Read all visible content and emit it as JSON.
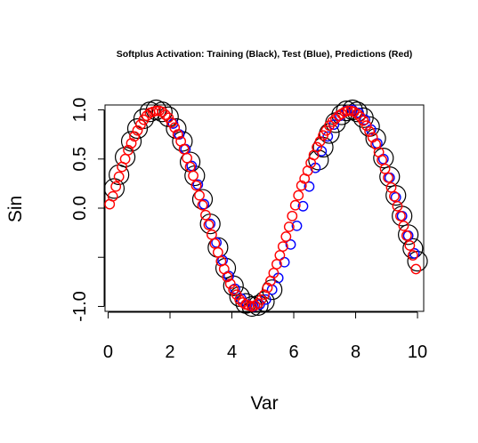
{
  "chart_data": {
    "type": "scatter",
    "title": "Softplus Activation: Training (Black), Test (Blue), Predictions (Red)",
    "xlabel": "Var",
    "ylabel": "Sin",
    "xlim": [
      -0.1,
      10.2
    ],
    "ylim": [
      -1.05,
      1.05
    ],
    "x_ticks": [
      0,
      2,
      4,
      6,
      8,
      10
    ],
    "x_tick_labels": [
      "0",
      "2",
      "4",
      "6",
      "8",
      "10"
    ],
    "y_ticks": [
      -1.0,
      -0.5,
      0.0,
      0.5,
      1.0
    ],
    "y_tick_labels": [
      "-1.0",
      "",
      "0.0",
      "0.5",
      "1.0"
    ],
    "grid": false,
    "legend": "none",
    "series": [
      {
        "color": "#000000",
        "marker": "open-circle-large",
        "x": [
          0.2,
          0.35,
          0.55,
          0.75,
          0.95,
          1.15,
          1.35,
          1.55,
          1.75,
          1.95,
          2.2,
          2.4,
          2.65,
          2.8,
          3.05,
          3.3,
          3.55,
          3.8,
          4.05,
          4.25,
          4.45,
          4.65,
          4.85,
          5.05,
          5.3,
          6.8,
          6.95,
          7.15,
          7.35,
          7.55,
          7.7,
          7.9,
          8.05,
          8.25,
          8.45,
          8.65,
          8.9,
          9.1,
          9.3,
          9.5,
          9.7,
          9.85,
          10.0
        ],
        "y": [
          0.2,
          0.34,
          0.52,
          0.68,
          0.81,
          0.91,
          0.98,
          1.0,
          0.98,
          0.93,
          0.81,
          0.68,
          0.47,
          0.33,
          0.09,
          -0.16,
          -0.4,
          -0.61,
          -0.79,
          -0.9,
          -0.97,
          -1.0,
          -0.99,
          -0.95,
          -0.83,
          0.49,
          0.62,
          0.76,
          0.87,
          0.95,
          0.99,
          1.0,
          0.98,
          0.92,
          0.83,
          0.71,
          0.51,
          0.32,
          0.13,
          -0.08,
          -0.27,
          -0.41,
          -0.54
        ]
      },
      {
        "color": "#0000ff",
        "marker": "open-circle",
        "x": [
          2.1,
          2.3,
          2.5,
          2.7,
          2.9,
          3.1,
          3.3,
          3.5,
          3.7,
          3.9,
          4.1,
          4.3,
          4.5,
          4.7,
          4.9,
          5.1,
          5.3,
          5.5,
          5.7,
          5.9,
          6.1,
          6.3,
          6.5,
          6.7,
          6.9,
          7.1,
          7.3,
          7.5,
          7.7,
          7.9,
          8.1,
          8.3,
          8.5,
          8.7,
          8.9,
          9.1,
          9.3,
          9.5,
          9.7,
          9.9
        ],
        "y": [
          0.86,
          0.75,
          0.6,
          0.43,
          0.24,
          0.04,
          -0.16,
          -0.35,
          -0.53,
          -0.69,
          -0.82,
          -0.92,
          -0.98,
          -1.0,
          -0.98,
          -0.93,
          -0.83,
          -0.71,
          -0.55,
          -0.37,
          -0.18,
          0.02,
          0.22,
          0.41,
          0.58,
          0.73,
          0.85,
          0.94,
          0.99,
          1.0,
          0.97,
          0.9,
          0.8,
          0.66,
          0.5,
          0.31,
          0.11,
          -0.08,
          -0.28,
          -0.46
        ]
      },
      {
        "color": "#ff0000",
        "marker": "open-circle",
        "x": [
          0.05,
          0.15,
          0.25,
          0.35,
          0.45,
          0.55,
          0.65,
          0.75,
          0.85,
          0.95,
          1.05,
          1.15,
          1.25,
          1.35,
          1.45,
          1.55,
          1.65,
          1.75,
          1.85,
          1.95,
          2.05,
          2.15,
          2.25,
          2.35,
          2.45,
          2.55,
          2.65,
          2.75,
          2.85,
          2.95,
          3.05,
          3.15,
          3.25,
          3.35,
          3.45,
          3.55,
          3.65,
          3.75,
          3.85,
          3.95,
          4.05,
          4.15,
          4.25,
          4.35,
          4.45,
          4.55,
          4.65,
          4.75,
          4.85,
          4.95,
          5.05,
          5.15,
          5.25,
          5.35,
          5.45,
          5.55,
          5.65,
          5.75,
          5.85,
          5.95,
          6.05,
          6.15,
          6.25,
          6.35,
          6.45,
          6.55,
          6.65,
          6.75,
          6.85,
          6.95,
          7.05,
          7.15,
          7.25,
          7.35,
          7.45,
          7.55,
          7.65,
          7.75,
          7.85,
          7.95,
          8.05,
          8.15,
          8.25,
          8.35,
          8.45,
          8.55,
          8.65,
          8.75,
          8.85,
          8.95,
          9.05,
          9.15,
          9.25,
          9.35,
          9.45,
          9.55,
          9.65,
          9.75,
          9.85,
          9.95
        ],
        "y": [
          0.04,
          0.12,
          0.22,
          0.32,
          0.42,
          0.5,
          0.59,
          0.66,
          0.73,
          0.79,
          0.85,
          0.9,
          0.94,
          0.97,
          0.98,
          0.99,
          0.99,
          0.98,
          0.95,
          0.92,
          0.87,
          0.82,
          0.75,
          0.68,
          0.6,
          0.51,
          0.42,
          0.33,
          0.23,
          0.13,
          0.03,
          -0.07,
          -0.17,
          -0.27,
          -0.36,
          -0.45,
          -0.54,
          -0.62,
          -0.7,
          -0.77,
          -0.83,
          -0.88,
          -0.93,
          -0.96,
          -0.98,
          -0.99,
          -1.0,
          -0.99,
          -0.97,
          -0.93,
          -0.88,
          -0.81,
          -0.74,
          -0.66,
          -0.57,
          -0.48,
          -0.39,
          -0.29,
          -0.19,
          -0.08,
          0.03,
          0.13,
          0.23,
          0.3,
          0.38,
          0.46,
          0.54,
          0.62,
          0.68,
          0.74,
          0.79,
          0.84,
          0.88,
          0.91,
          0.94,
          0.96,
          0.98,
          0.99,
          0.99,
          0.98,
          0.96,
          0.93,
          0.89,
          0.84,
          0.78,
          0.72,
          0.65,
          0.57,
          0.49,
          0.4,
          0.31,
          0.21,
          0.12,
          0.02,
          -0.08,
          -0.18,
          -0.28,
          -0.38,
          -0.48,
          -0.62
        ]
      }
    ]
  }
}
